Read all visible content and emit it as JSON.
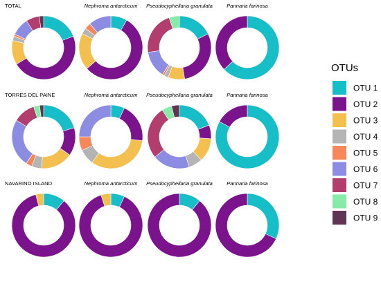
{
  "chart_data": {
    "type": "pie",
    "variant": "donut-grid",
    "legend": {
      "title": "OTUs",
      "position": "right",
      "items": [
        {
          "name": "OTU 1",
          "color": "#17BEC8"
        },
        {
          "name": "OTU 2",
          "color": "#7B138D"
        },
        {
          "name": "OTU 3",
          "color": "#F3BF4E"
        },
        {
          "name": "OTU 4",
          "color": "#B4B4B4"
        },
        {
          "name": "OTU 5",
          "color": "#F6875A"
        },
        {
          "name": "OTU 6",
          "color": "#8D8CE3"
        },
        {
          "name": "OTU 7",
          "color": "#B13E6C"
        },
        {
          "name": "OTU 8",
          "color": "#86EBA6"
        },
        {
          "name": "OTU 9",
          "color": "#603553"
        }
      ]
    },
    "rows": [
      {
        "panels": [
          {
            "title": "TOTAL",
            "italic": false,
            "values": [
              17,
              42,
              11,
              2,
              1,
              8,
              6,
              0,
              2
            ]
          },
          {
            "title": "Nephroma antarcticum",
            "italic": true,
            "values": [
              8,
              53,
              18,
              3,
              3,
              11,
              0,
              0,
              0
            ]
          },
          {
            "title": "Pseudocyphellaria granulata",
            "italic": true,
            "values": [
              17,
              28,
              8,
              2,
              1,
              13,
              21,
              5,
              0
            ]
          },
          {
            "title": "Pannaria farinosa",
            "italic": true,
            "values": [
              63,
              37,
              0,
              0,
              0,
              0,
              0,
              0,
              0
            ]
          }
        ]
      },
      {
        "panels": [
          {
            "title": "TORRES DEL PAINE",
            "italic": false,
            "values": [
              20,
              14,
              16,
              5,
              3,
              24,
              11,
              3,
              2
            ]
          },
          {
            "title": "Nephroma antarcticum",
            "italic": true,
            "values": [
              7,
              20,
              33,
              8,
              7,
              25,
              0,
              0,
              0
            ]
          },
          {
            "title": "Pseudocyphellaria granulata",
            "italic": true,
            "values": [
              19,
              7,
              12,
              7,
              0,
              19,
              27,
              5,
              4
            ]
          },
          {
            "title": "Pannaria farinosa",
            "italic": true,
            "values": [
              83,
              17,
              0,
              0,
              0,
              0,
              0,
              0,
              0
            ]
          }
        ]
      },
      {
        "panels": [
          {
            "title": "NAVARINO ISLAND",
            "italic": false,
            "values": [
              11,
              85,
              4,
              0,
              0,
              0,
              0,
              0,
              0
            ]
          },
          {
            "title": "Nephroma antarcticum",
            "italic": true,
            "values": [
              7,
              88,
              5,
              0,
              0,
              0,
              0,
              0,
              0
            ]
          },
          {
            "title": "Pseudocyphellaria granulata",
            "italic": true,
            "values": [
              11,
              89,
              0,
              0,
              0,
              0,
              0,
              0,
              0
            ]
          },
          {
            "title": "Pannaria farinosa",
            "italic": true,
            "values": [
              32,
              68,
              0,
              0,
              0,
              0,
              0,
              0,
              0
            ]
          }
        ]
      }
    ]
  }
}
